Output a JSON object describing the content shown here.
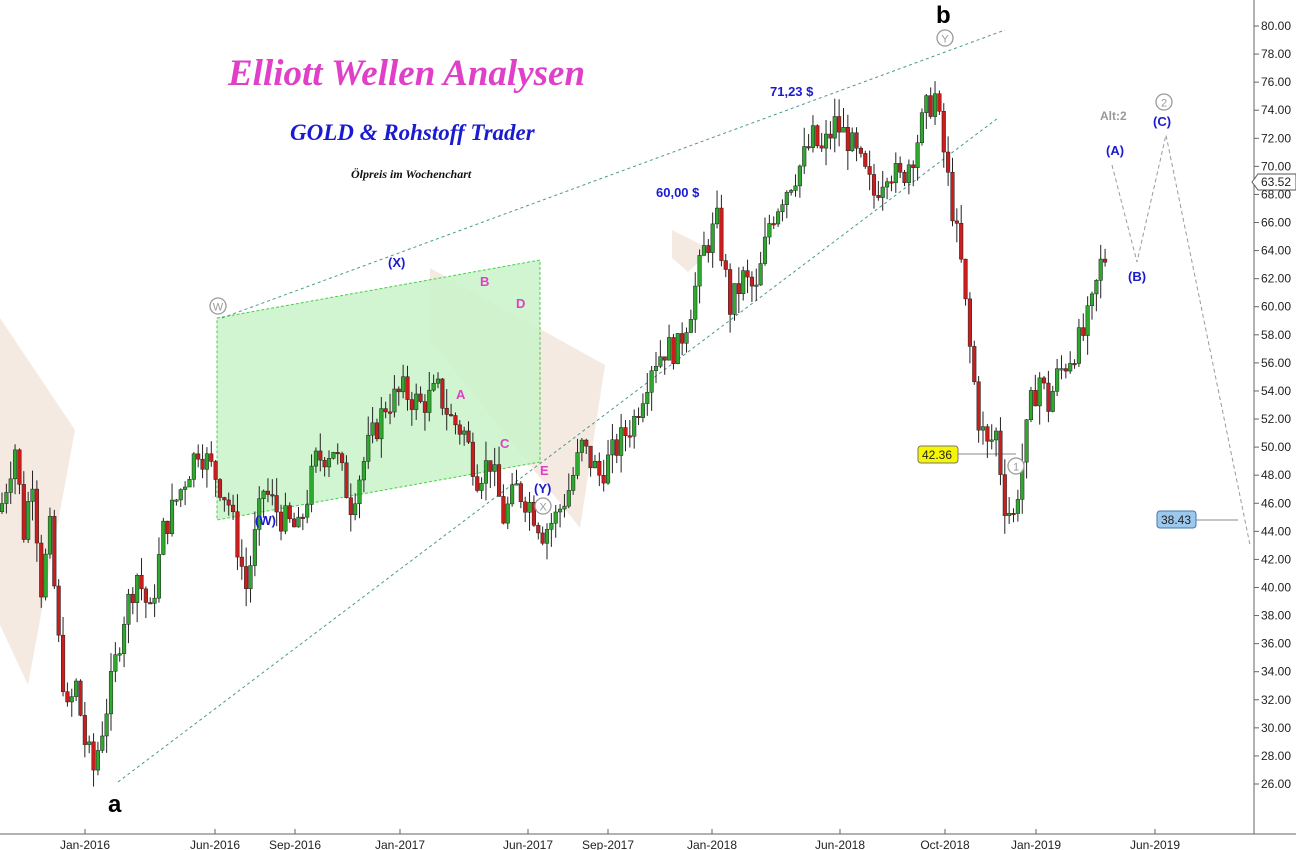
{
  "title": "Elliott Wellen Analysen",
  "subtitle": "GOLD & Rohstoff Trader",
  "note": "Ölpreis im Wochenchart",
  "colors": {
    "up": "#2fa82f",
    "down": "#c81e1e",
    "title": "#e040c8",
    "subtitle": "#1a1ad0",
    "wave_blue": "#1a1ad0",
    "wave_magenta": "#e040c8",
    "wave_gray": "#9a9a9a",
    "channel_fill": "#ccf5cc",
    "channel_line": "#33cc33",
    "trend_line": "#4a9a8a",
    "triangle_fill": "#f3e5da"
  },
  "chart_data": {
    "type": "candlestick",
    "instrument": "Ölpreis",
    "timeframe": "Wochenchart",
    "ylim": [
      24.5,
      81
    ],
    "y_ticks": [
      "26.00",
      "28.00",
      "30.00",
      "32.00",
      "34.00",
      "36.00",
      "38.00",
      "40.00",
      "42.00",
      "44.00",
      "46.00",
      "48.00",
      "50.00",
      "52.00",
      "54.00",
      "56.00",
      "58.00",
      "60.00",
      "62.00",
      "64.00",
      "66.00",
      "68.00",
      "70.00",
      "72.00",
      "74.00",
      "76.00",
      "78.00",
      "80.00"
    ],
    "x_ticks": [
      "Jan-2016",
      "Jun-2016",
      "Sep-2016",
      "Jan-2017",
      "Jun-2017",
      "Sep-2017",
      "Jan-2018",
      "Jun-2018",
      "Oct-2018",
      "Jan-2019",
      "Jun-2019"
    ],
    "last_price": "63.52",
    "grid": false,
    "price_path": [
      [
        0,
        46
      ],
      [
        3,
        50
      ],
      [
        5,
        44
      ],
      [
        7,
        48
      ],
      [
        9,
        40
      ],
      [
        11,
        44
      ],
      [
        13,
        36
      ],
      [
        15,
        31
      ],
      [
        17,
        33
      ],
      [
        19,
        29
      ],
      [
        21,
        27
      ],
      [
        23,
        30
      ],
      [
        25,
        33
      ],
      [
        28,
        38
      ],
      [
        31,
        41
      ],
      [
        34,
        38
      ],
      [
        37,
        44
      ],
      [
        41,
        47
      ],
      [
        45,
        50
      ],
      [
        49,
        48
      ],
      [
        52,
        46
      ],
      [
        56,
        40
      ],
      [
        60,
        47
      ],
      [
        64,
        45
      ],
      [
        68,
        44
      ],
      [
        72,
        49
      ],
      [
        76,
        50
      ],
      [
        80,
        46
      ],
      [
        84,
        50
      ],
      [
        88,
        53
      ],
      [
        92,
        54
      ],
      [
        96,
        53
      ],
      [
        100,
        54
      ],
      [
        103,
        52
      ],
      [
        106,
        51
      ],
      [
        109,
        48
      ],
      [
        112,
        49
      ],
      [
        115,
        45
      ],
      [
        118,
        47
      ],
      [
        121,
        46
      ],
      [
        124,
        44
      ],
      [
        127,
        45
      ],
      [
        130,
        47
      ],
      [
        133,
        50
      ],
      [
        137,
        48
      ],
      [
        141,
        50
      ],
      [
        145,
        52
      ],
      [
        149,
        56
      ],
      [
        152,
        57
      ],
      [
        155,
        57
      ],
      [
        158,
        60
      ],
      [
        161,
        64
      ],
      [
        164,
        66
      ],
      [
        167,
        60
      ],
      [
        170,
        62
      ],
      [
        173,
        61
      ],
      [
        176,
        66
      ],
      [
        179,
        68
      ],
      [
        183,
        70
      ],
      [
        186,
        72
      ],
      [
        188,
        71
      ],
      [
        191,
        73
      ],
      [
        194,
        72
      ],
      [
        197,
        70
      ],
      [
        200,
        68
      ],
      [
        203,
        70
      ],
      [
        206,
        69
      ],
      [
        209,
        71
      ],
      [
        212,
        74
      ],
      [
        214,
        75
      ],
      [
        216,
        71
      ],
      [
        218,
        67
      ],
      [
        220,
        63
      ],
      [
        222,
        57
      ],
      [
        224,
        52
      ],
      [
        226,
        50
      ],
      [
        228,
        51
      ],
      [
        230,
        46
      ],
      [
        232,
        45
      ],
      [
        234,
        49
      ],
      [
        236,
        53
      ],
      [
        238,
        55
      ],
      [
        240,
        53
      ],
      [
        242,
        55
      ],
      [
        244,
        56
      ],
      [
        246,
        57
      ],
      [
        248,
        58
      ],
      [
        250,
        60
      ],
      [
        252,
        63
      ],
      [
        253,
        63.5
      ]
    ],
    "annotations": {
      "price_labels": [
        "71,23 $",
        "60,00 $"
      ],
      "boxed_values": [
        "42.36",
        "38.43"
      ],
      "wave_letters_black": [
        "a",
        "b"
      ],
      "wave_blue": [
        "(W)",
        "(X)",
        "(Y)",
        "(A)",
        "(B)",
        "(C)"
      ],
      "wave_magenta": [
        "A",
        "B",
        "C",
        "D",
        "E"
      ],
      "wave_circled": [
        "W",
        "X",
        "Y",
        "1",
        "2"
      ],
      "alt_label": "Alt:2"
    }
  }
}
